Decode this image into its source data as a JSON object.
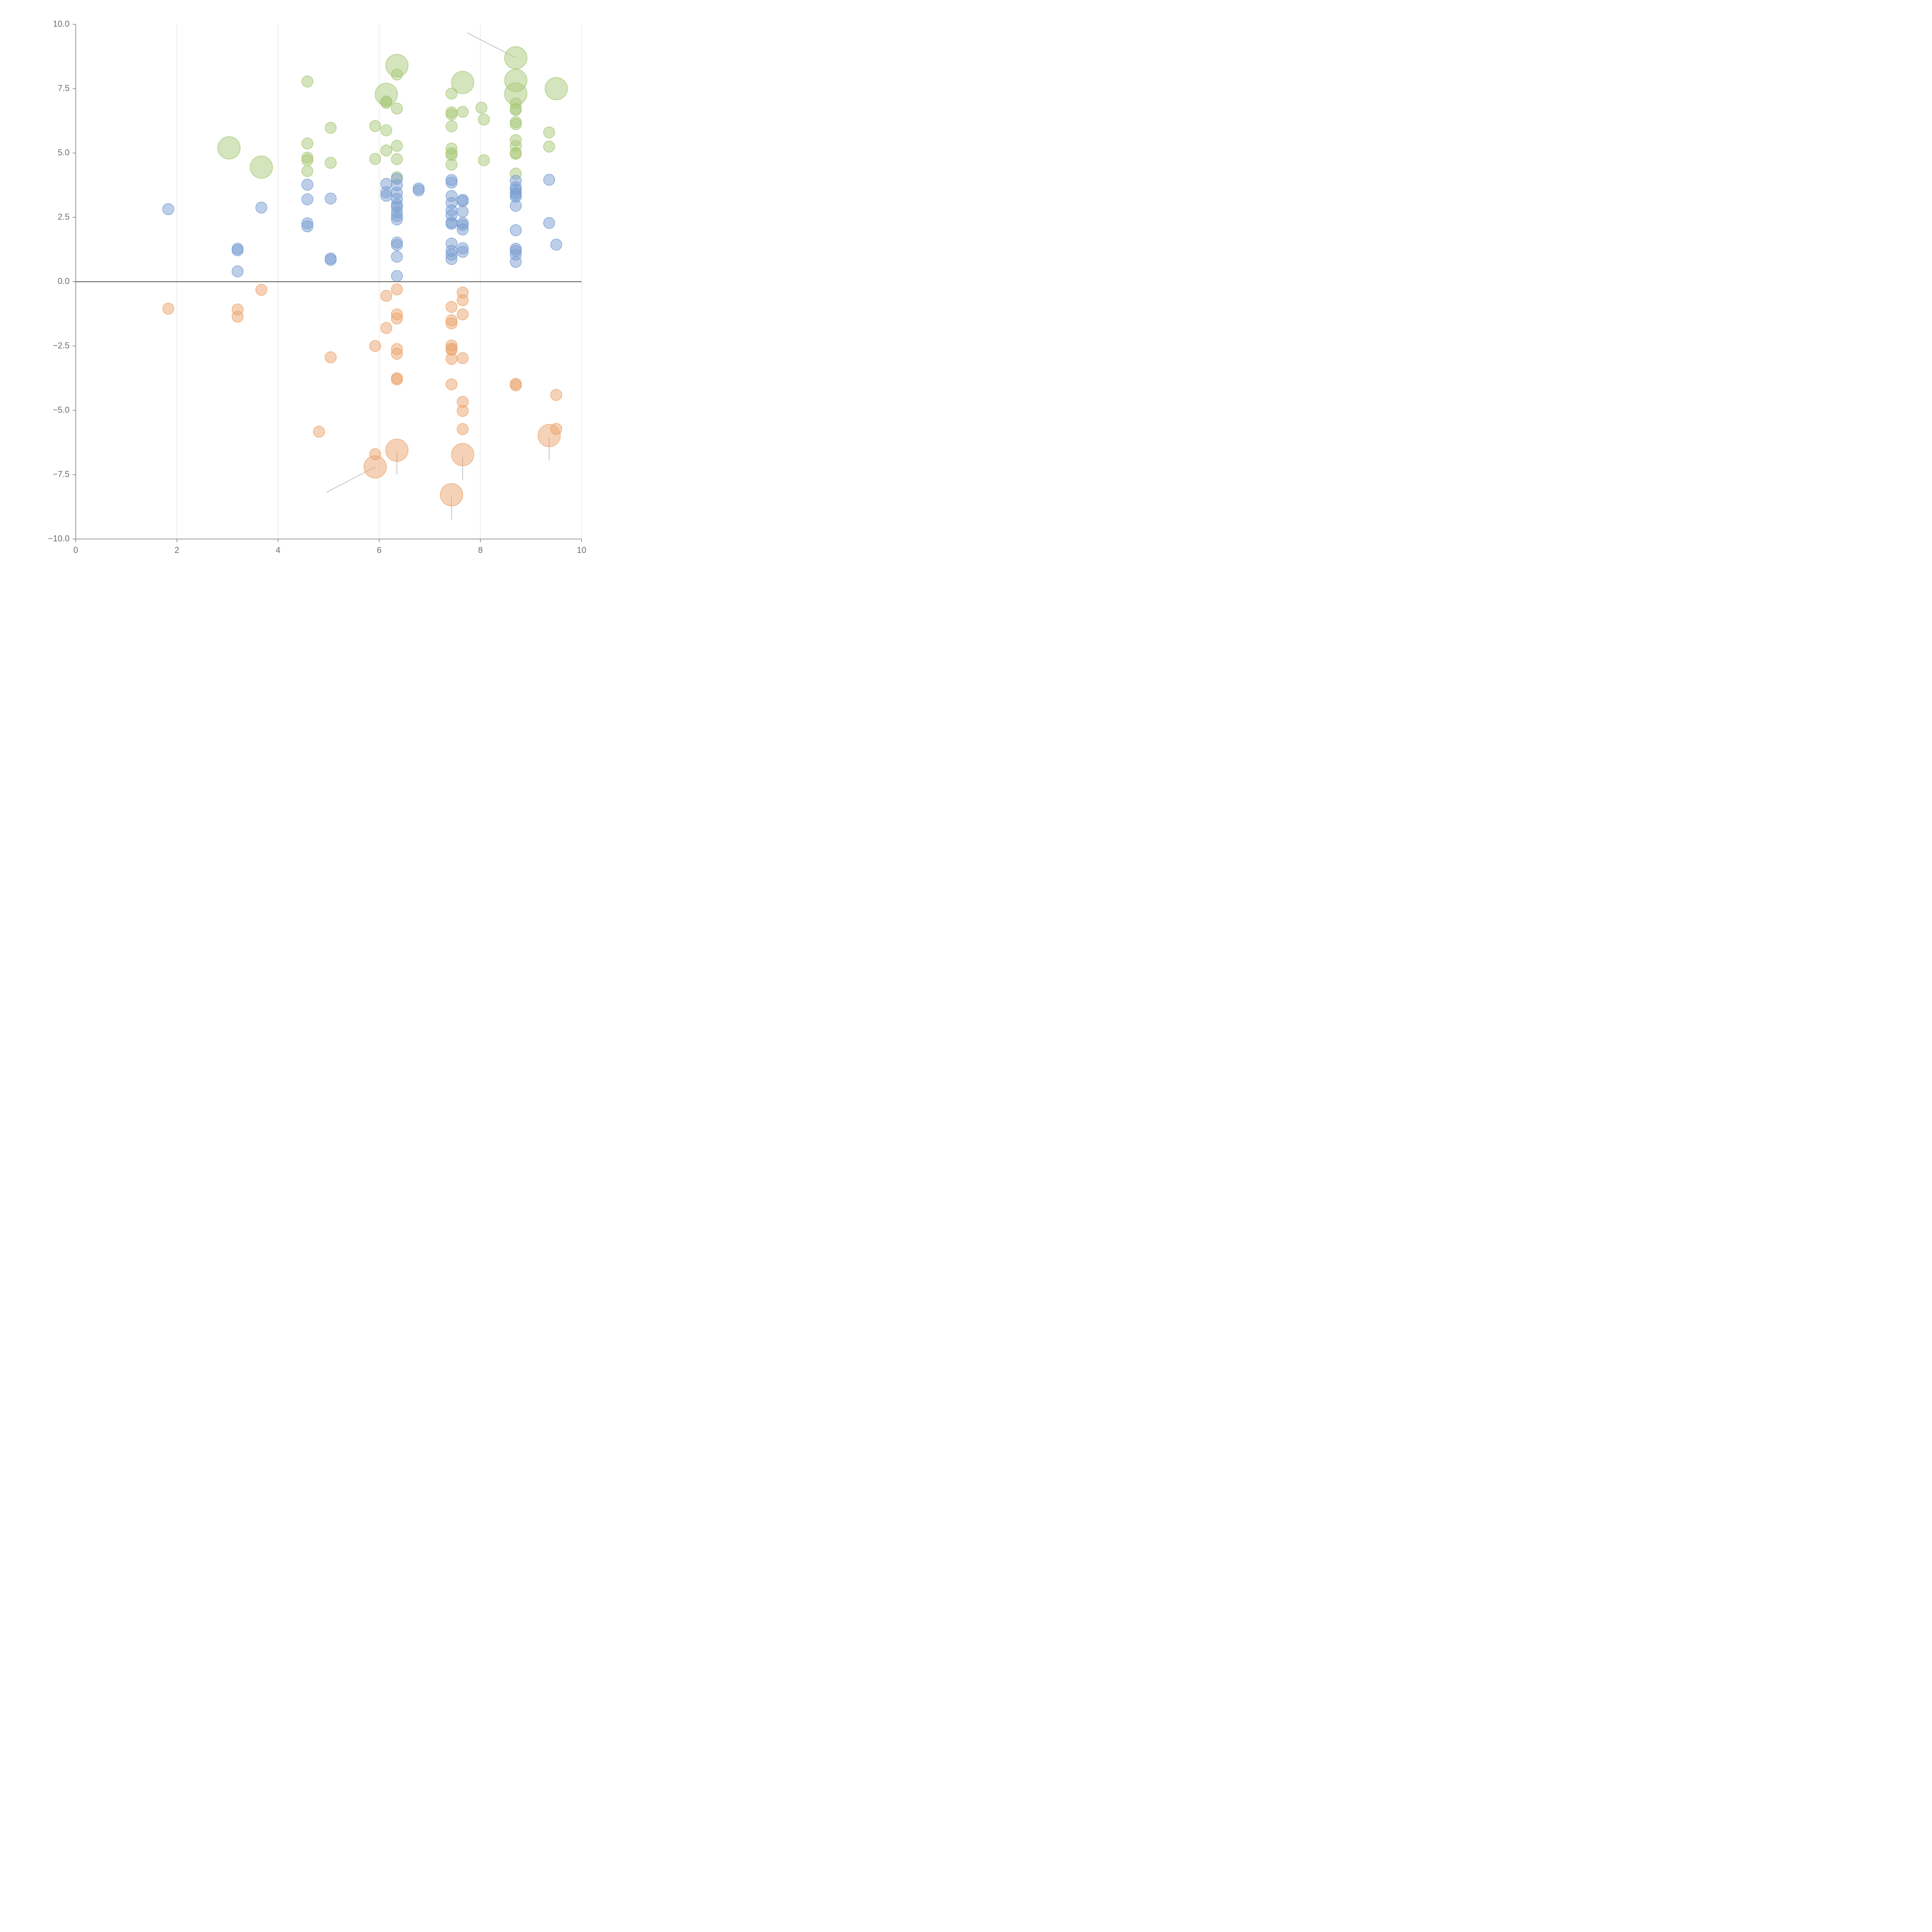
{
  "chart_data": {
    "type": "scatter",
    "variant": "bubble",
    "title": "",
    "xlabel": "",
    "ylabel": "",
    "xlim": [
      0,
      10
    ],
    "ylim": [
      -10,
      10
    ],
    "x_ticks": [
      0,
      2,
      4,
      6,
      8,
      10
    ],
    "y_ticks": [
      -10,
      -7.5,
      -5,
      -2.5,
      0,
      2.5,
      5,
      7.5,
      10
    ],
    "x_tick_labels": [
      "0",
      "2",
      "4",
      "6",
      "8",
      "10"
    ],
    "y_tick_labels": [
      "−10.0",
      "−7.5",
      "−5.0",
      "−2.5",
      "0.0",
      "2.5",
      "5.0",
      "7.5",
      "10.0"
    ],
    "grid": "vertical",
    "zero_line": true,
    "series": [
      {
        "name": "green",
        "color": "#a9c97a",
        "points": [
          {
            "x": 3.03,
            "y": 5.2,
            "size": "large"
          },
          {
            "x": 3.67,
            "y": 4.45,
            "size": "large"
          },
          {
            "x": 4.58,
            "y": 7.78
          },
          {
            "x": 4.58,
            "y": 5.37
          },
          {
            "x": 4.58,
            "y": 4.82
          },
          {
            "x": 4.58,
            "y": 4.72
          },
          {
            "x": 4.58,
            "y": 4.3
          },
          {
            "x": 5.04,
            "y": 5.98
          },
          {
            "x": 5.04,
            "y": 4.62
          },
          {
            "x": 5.92,
            "y": 6.05
          },
          {
            "x": 5.92,
            "y": 4.77
          },
          {
            "x": 6.14,
            "y": 7.28,
            "size": "large"
          },
          {
            "x": 6.14,
            "y": 7.0
          },
          {
            "x": 6.14,
            "y": 6.95
          },
          {
            "x": 6.14,
            "y": 5.88
          },
          {
            "x": 6.14,
            "y": 5.1
          },
          {
            "x": 6.35,
            "y": 8.4,
            "size": "large"
          },
          {
            "x": 6.35,
            "y": 8.05
          },
          {
            "x": 6.35,
            "y": 6.73
          },
          {
            "x": 6.35,
            "y": 5.28
          },
          {
            "x": 6.35,
            "y": 4.76
          },
          {
            "x": 6.35,
            "y": 4.06
          },
          {
            "x": 7.43,
            "y": 7.31
          },
          {
            "x": 7.43,
            "y": 6.58
          },
          {
            "x": 7.43,
            "y": 6.5
          },
          {
            "x": 7.43,
            "y": 6.04
          },
          {
            "x": 7.43,
            "y": 5.17
          },
          {
            "x": 7.43,
            "y": 5.0
          },
          {
            "x": 7.43,
            "y": 4.92
          },
          {
            "x": 7.43,
            "y": 4.55
          },
          {
            "x": 7.65,
            "y": 7.74,
            "size": "large"
          },
          {
            "x": 7.65,
            "y": 6.6
          },
          {
            "x": 8.02,
            "y": 6.76
          },
          {
            "x": 8.07,
            "y": 6.3
          },
          {
            "x": 8.07,
            "y": 4.72
          },
          {
            "x": 8.7,
            "y": 8.7,
            "size": "large"
          },
          {
            "x": 8.7,
            "y": 7.82,
            "size": "large"
          },
          {
            "x": 8.7,
            "y": 7.3,
            "size": "large"
          },
          {
            "x": 8.7,
            "y": 6.93
          },
          {
            "x": 8.7,
            "y": 6.72
          },
          {
            "x": 8.7,
            "y": 6.67
          },
          {
            "x": 8.7,
            "y": 6.2
          },
          {
            "x": 8.7,
            "y": 6.12
          },
          {
            "x": 8.7,
            "y": 5.5
          },
          {
            "x": 8.7,
            "y": 5.27
          },
          {
            "x": 8.7,
            "y": 5.0
          },
          {
            "x": 8.7,
            "y": 4.97
          },
          {
            "x": 8.7,
            "y": 4.2
          },
          {
            "x": 9.36,
            "y": 5.8
          },
          {
            "x": 9.36,
            "y": 5.25
          },
          {
            "x": 9.5,
            "y": 7.5,
            "size": "large"
          }
        ]
      },
      {
        "name": "blue",
        "color": "#7b9fd1",
        "points": [
          {
            "x": 1.83,
            "y": 2.82
          },
          {
            "x": 3.2,
            "y": 1.28
          },
          {
            "x": 3.2,
            "y": 1.22
          },
          {
            "x": 3.2,
            "y": 0.4
          },
          {
            "x": 3.67,
            "y": 2.88
          },
          {
            "x": 4.58,
            "y": 3.77
          },
          {
            "x": 4.58,
            "y": 3.2
          },
          {
            "x": 4.58,
            "y": 2.27
          },
          {
            "x": 4.58,
            "y": 2.15
          },
          {
            "x": 5.04,
            "y": 3.23
          },
          {
            "x": 5.04,
            "y": 0.9
          },
          {
            "x": 5.04,
            "y": 0.85
          },
          {
            "x": 6.14,
            "y": 3.8
          },
          {
            "x": 6.14,
            "y": 3.48
          },
          {
            "x": 6.14,
            "y": 3.34
          },
          {
            "x": 6.35,
            "y": 4.0
          },
          {
            "x": 6.35,
            "y": 3.75
          },
          {
            "x": 6.35,
            "y": 3.45
          },
          {
            "x": 6.35,
            "y": 3.22
          },
          {
            "x": 6.35,
            "y": 3.0
          },
          {
            "x": 6.35,
            "y": 2.9
          },
          {
            "x": 6.35,
            "y": 2.7
          },
          {
            "x": 6.35,
            "y": 2.55
          },
          {
            "x": 6.35,
            "y": 2.42
          },
          {
            "x": 6.35,
            "y": 1.52
          },
          {
            "x": 6.35,
            "y": 1.43
          },
          {
            "x": 6.35,
            "y": 0.97
          },
          {
            "x": 6.35,
            "y": 0.22
          },
          {
            "x": 6.78,
            "y": 3.62
          },
          {
            "x": 6.78,
            "y": 3.55
          },
          {
            "x": 7.43,
            "y": 3.95
          },
          {
            "x": 7.43,
            "y": 3.85
          },
          {
            "x": 7.43,
            "y": 3.33
          },
          {
            "x": 7.43,
            "y": 3.06
          },
          {
            "x": 7.43,
            "y": 2.77
          },
          {
            "x": 7.43,
            "y": 2.58
          },
          {
            "x": 7.43,
            "y": 2.3
          },
          {
            "x": 7.43,
            "y": 2.25
          },
          {
            "x": 7.43,
            "y": 1.48
          },
          {
            "x": 7.43,
            "y": 1.2
          },
          {
            "x": 7.43,
            "y": 1.05
          },
          {
            "x": 7.43,
            "y": 0.88
          },
          {
            "x": 7.65,
            "y": 3.18
          },
          {
            "x": 7.65,
            "y": 3.13
          },
          {
            "x": 7.65,
            "y": 2.72
          },
          {
            "x": 7.65,
            "y": 2.28
          },
          {
            "x": 7.65,
            "y": 2.2
          },
          {
            "x": 7.65,
            "y": 2.03
          },
          {
            "x": 7.65,
            "y": 1.3
          },
          {
            "x": 7.65,
            "y": 1.16
          },
          {
            "x": 8.7,
            "y": 3.92
          },
          {
            "x": 8.7,
            "y": 3.67
          },
          {
            "x": 8.7,
            "y": 3.58
          },
          {
            "x": 8.7,
            "y": 3.45
          },
          {
            "x": 8.7,
            "y": 3.38
          },
          {
            "x": 8.7,
            "y": 3.3
          },
          {
            "x": 8.7,
            "y": 2.95
          },
          {
            "x": 8.7,
            "y": 2.0
          },
          {
            "x": 8.7,
            "y": 1.28
          },
          {
            "x": 8.7,
            "y": 1.2
          },
          {
            "x": 8.7,
            "y": 1.05
          },
          {
            "x": 8.7,
            "y": 0.77
          },
          {
            "x": 9.36,
            "y": 3.96
          },
          {
            "x": 9.36,
            "y": 2.28
          },
          {
            "x": 9.5,
            "y": 1.44
          }
        ]
      },
      {
        "name": "orange",
        "color": "#eba66f",
        "points": [
          {
            "x": 1.83,
            "y": -1.05
          },
          {
            "x": 3.2,
            "y": -1.08
          },
          {
            "x": 3.2,
            "y": -1.36
          },
          {
            "x": 3.67,
            "y": -0.32
          },
          {
            "x": 4.81,
            "y": -5.83
          },
          {
            "x": 5.04,
            "y": -2.94
          },
          {
            "x": 5.92,
            "y": -2.5
          },
          {
            "x": 5.92,
            "y": -6.7
          },
          {
            "x": 5.92,
            "y": -7.2,
            "size": "large"
          },
          {
            "x": 6.14,
            "y": -0.55
          },
          {
            "x": 6.14,
            "y": -1.8
          },
          {
            "x": 6.35,
            "y": -0.3
          },
          {
            "x": 6.35,
            "y": -1.27
          },
          {
            "x": 6.35,
            "y": -1.43
          },
          {
            "x": 6.35,
            "y": -2.62
          },
          {
            "x": 6.35,
            "y": -2.8
          },
          {
            "x": 6.35,
            "y": -3.75
          },
          {
            "x": 6.35,
            "y": -3.8
          },
          {
            "x": 6.35,
            "y": -6.55,
            "size": "large"
          },
          {
            "x": 7.43,
            "y": -0.98
          },
          {
            "x": 7.43,
            "y": -1.5
          },
          {
            "x": 7.43,
            "y": -1.62
          },
          {
            "x": 7.43,
            "y": -2.48
          },
          {
            "x": 7.43,
            "y": -2.6
          },
          {
            "x": 7.43,
            "y": -2.65
          },
          {
            "x": 7.43,
            "y": -3.0
          },
          {
            "x": 7.43,
            "y": -3.99
          },
          {
            "x": 7.43,
            "y": -8.28,
            "size": "large"
          },
          {
            "x": 7.65,
            "y": -0.42
          },
          {
            "x": 7.65,
            "y": -0.72
          },
          {
            "x": 7.65,
            "y": -1.27
          },
          {
            "x": 7.65,
            "y": -2.97
          },
          {
            "x": 7.65,
            "y": -4.67
          },
          {
            "x": 7.65,
            "y": -5.02
          },
          {
            "x": 7.65,
            "y": -5.73
          },
          {
            "x": 7.65,
            "y": -6.72,
            "size": "large"
          },
          {
            "x": 8.7,
            "y": -3.97
          },
          {
            "x": 8.7,
            "y": -4.03
          },
          {
            "x": 9.36,
            "y": -5.98,
            "size": "large"
          },
          {
            "x": 9.5,
            "y": -4.4
          },
          {
            "x": 9.5,
            "y": -5.72
          }
        ]
      }
    ],
    "leader_lines": [
      {
        "from": [
          8.7,
          8.7
        ],
        "to": [
          7.74,
          9.67
        ]
      },
      {
        "from": [
          5.92,
          -7.2
        ],
        "to": [
          4.96,
          -8.18
        ]
      },
      {
        "from": [
          6.35,
          -6.6
        ],
        "to": [
          6.35,
          -7.5
        ]
      },
      {
        "from": [
          7.65,
          -6.8
        ],
        "to": [
          7.65,
          -7.7
        ]
      },
      {
        "from": [
          7.43,
          -8.35
        ],
        "to": [
          7.43,
          -9.25
        ]
      },
      {
        "from": [
          9.36,
          -6.05
        ],
        "to": [
          9.36,
          -6.95
        ]
      }
    ]
  }
}
